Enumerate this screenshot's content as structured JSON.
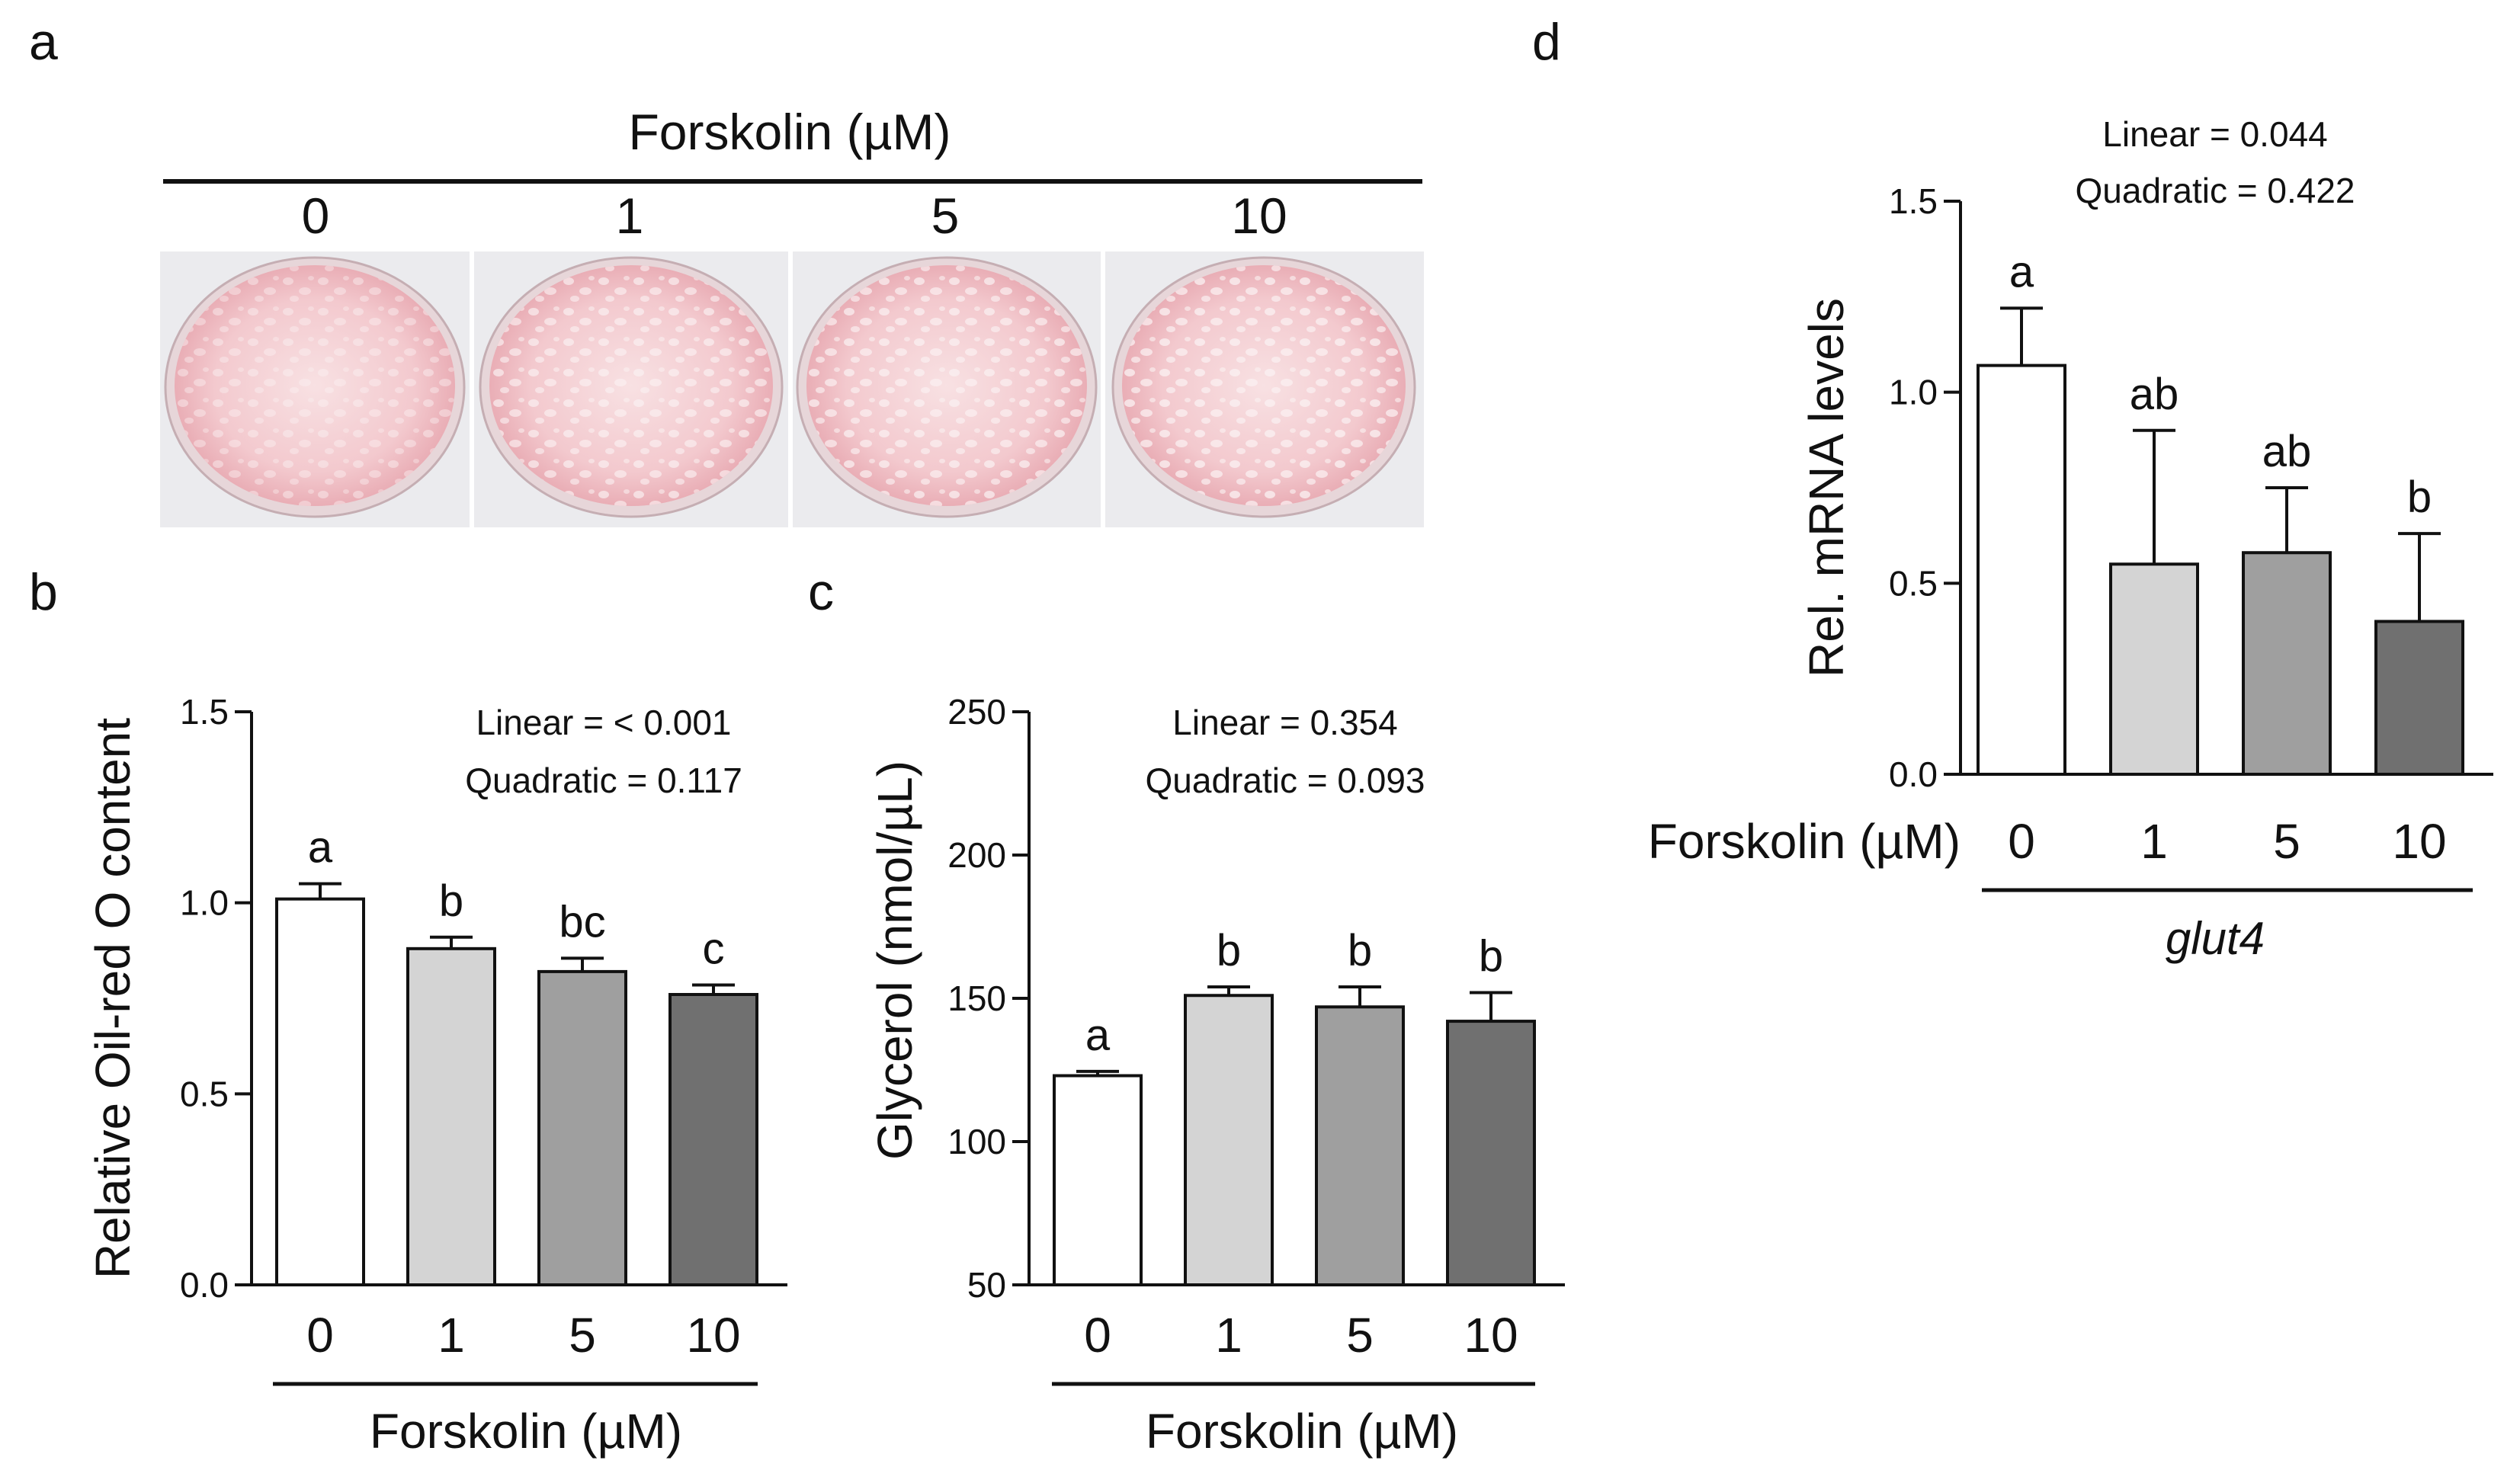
{
  "panel_a": {
    "letter": "a",
    "header": "Forskolin (µM)",
    "doses": [
      "0",
      "1",
      "5",
      "10"
    ]
  },
  "chart_data": [
    {
      "panel": "b",
      "type": "bar",
      "categories": [
        "0",
        "1",
        "5",
        "10"
      ],
      "values": [
        1.01,
        0.88,
        0.82,
        0.76
      ],
      "errors": [
        0.04,
        0.03,
        0.035,
        0.025
      ],
      "letters": [
        "a",
        "b",
        "bc",
        "c"
      ],
      "colors": [
        "#ffffff",
        "#d4d4d4",
        "#9f9f9f",
        "#707070"
      ],
      "ylabel": "Relative Oil-red O content",
      "xlabel": "Forskolin (µM)",
      "ylim": [
        0,
        1.5
      ],
      "yticks": [
        "0.0",
        "0.5",
        "1.0",
        "1.5"
      ],
      "stats": [
        "Linear = < 0.001",
        "Quadratic = 0.117"
      ]
    },
    {
      "panel": "c",
      "type": "bar",
      "categories": [
        "0",
        "1",
        "5",
        "10"
      ],
      "values": [
        123,
        151,
        147,
        142
      ],
      "errors": [
        1.5,
        3,
        7,
        10
      ],
      "letters": [
        "a",
        "b",
        "b",
        "b"
      ],
      "colors": [
        "#ffffff",
        "#d4d4d4",
        "#9f9f9f",
        "#707070"
      ],
      "ylabel": "Glycerol (nmol/µL)",
      "xlabel": "Forskolin (µM)",
      "ylim": [
        50,
        250
      ],
      "yticks": [
        "50",
        "100",
        "150",
        "200",
        "250"
      ],
      "stats": [
        "Linear =  0.354",
        "Quadratic = 0.093"
      ]
    },
    {
      "panel": "d",
      "type": "bar",
      "categories": [
        "0",
        "1",
        "5",
        "10"
      ],
      "values": [
        1.07,
        0.55,
        0.58,
        0.4
      ],
      "errors": [
        0.15,
        0.35,
        0.17,
        0.23
      ],
      "letters": [
        "a",
        "ab",
        "ab",
        "b"
      ],
      "colors": [
        "#ffffff",
        "#d4d4d4",
        "#9f9f9f",
        "#707070"
      ],
      "ylabel": "Rel. mRNA levels",
      "xlabel": "Forskolin (µM)",
      "gene": "glut4",
      "ylim": [
        0,
        1.5
      ],
      "yticks": [
        "0.0",
        "0.5",
        "1.0",
        "1.5"
      ],
      "stats": [
        "Linear =  0.044",
        "Quadratic = 0.422"
      ]
    }
  ]
}
